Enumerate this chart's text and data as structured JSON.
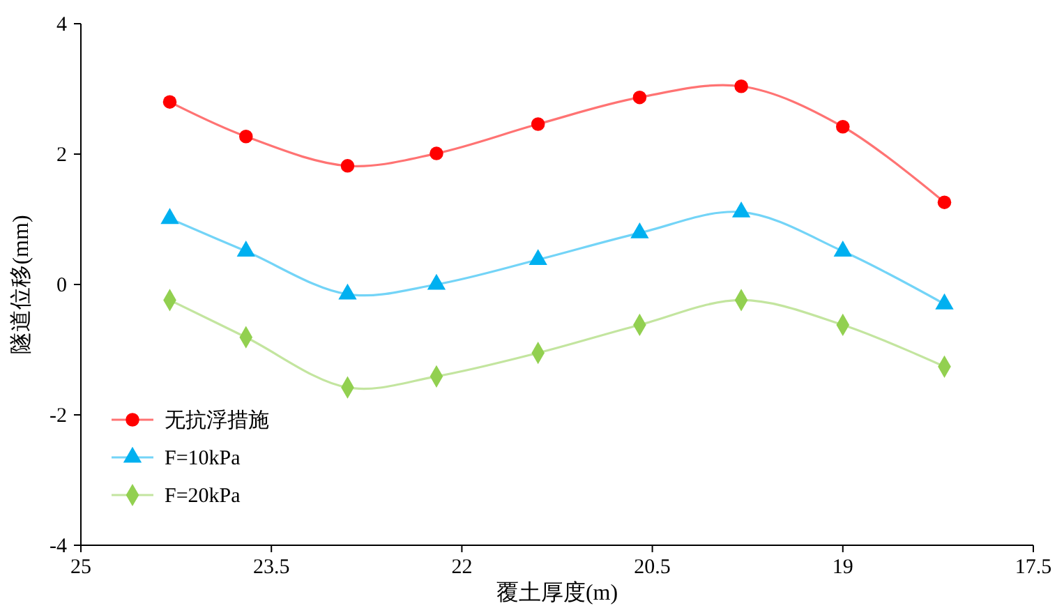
{
  "chart_data": {
    "type": "line",
    "xlabel": "覆土厚度(m)",
    "ylabel": "隧道位移(mm)",
    "x": [
      24.3,
      23.7,
      22.9,
      22.2,
      21.4,
      20.6,
      19.8,
      19.0,
      18.2
    ],
    "xlim": [
      25,
      17.5
    ],
    "xticks": [
      25,
      23.5,
      22,
      20.5,
      19,
      17.5
    ],
    "ylim": [
      -4,
      4
    ],
    "yticks": [
      -4,
      -2,
      0,
      2,
      4
    ],
    "grid": false,
    "legend": "bottom left",
    "line_style": "solid",
    "series": [
      {
        "name": "无抗浮措施",
        "color": "#ff0000",
        "marker": "circle",
        "values": [
          2.8,
          2.27,
          1.82,
          2.01,
          2.46,
          2.87,
          3.04,
          2.42,
          1.26
        ]
      },
      {
        "name": "F=10kPa",
        "color": "#00b0f0",
        "marker": "triangle",
        "values": [
          1.01,
          0.51,
          -0.15,
          0.0,
          0.38,
          0.79,
          1.11,
          0.51,
          -0.3
        ]
      },
      {
        "name": "F=20kPa",
        "color": "#92d050",
        "marker": "diamond",
        "values": [
          -0.24,
          -0.81,
          -1.58,
          -1.41,
          -1.05,
          -0.62,
          -0.24,
          -0.62,
          -1.26
        ]
      }
    ]
  }
}
